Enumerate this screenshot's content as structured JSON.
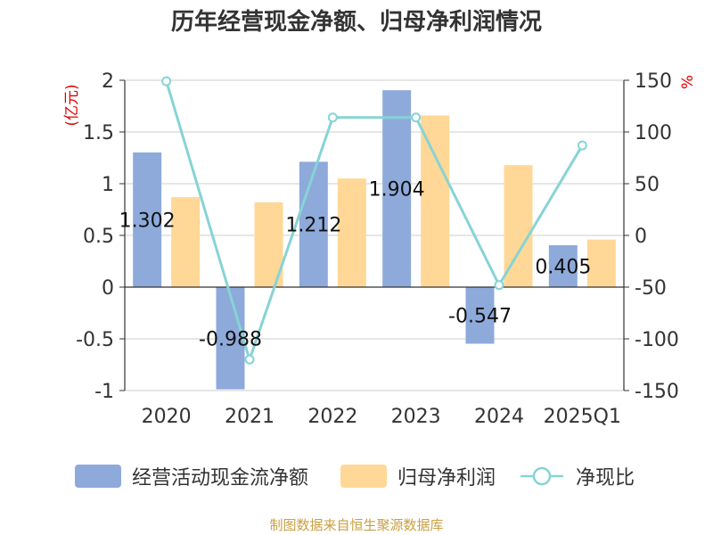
{
  "chart_data": {
    "type": "bar",
    "title": "历年经营现金净额、归母净利润情况",
    "categories": [
      "2020",
      "2021",
      "2022",
      "2023",
      "2024",
      "2025Q1"
    ],
    "y_left": {
      "label": "(亿元)",
      "ylim": [
        -1,
        2
      ],
      "ticks": [
        "2",
        "1.5",
        "1",
        "0.5",
        "0",
        "-0.5",
        "-1"
      ]
    },
    "y_right": {
      "label": "%",
      "ylim": [
        -150,
        150
      ],
      "ticks": [
        "150",
        "100",
        "50",
        "0",
        "-50",
        "-100",
        "-150"
      ]
    },
    "grid": true,
    "legend_position": "bottom",
    "series": [
      {
        "name": "经营活动现金流净额",
        "type": "bar",
        "axis": "left",
        "color": "#8eaadb",
        "values": [
          1.302,
          -0.988,
          1.212,
          1.904,
          -0.547,
          0.405
        ],
        "data_labels": [
          "1.302",
          "-0.988",
          "1.212",
          "1.904",
          "-0.547",
          "0.405"
        ]
      },
      {
        "name": "归母净利润",
        "type": "bar",
        "axis": "left",
        "color": "#ffd897",
        "values": [
          0.87,
          0.82,
          1.05,
          1.66,
          1.18,
          0.46
        ]
      },
      {
        "name": "净现比",
        "type": "line",
        "axis": "right",
        "color": "#87d3d6",
        "values": [
          149,
          -120,
          114,
          114,
          -48,
          87
        ]
      }
    ]
  },
  "title": "历年经营现金净额、归母净利润情况",
  "footer": "制图数据来自恒生聚源数据库",
  "colors": {
    "axis_label_red": "#e00000",
    "footer": "#c9a043",
    "text": "#333333",
    "grid": "#cccccc"
  }
}
